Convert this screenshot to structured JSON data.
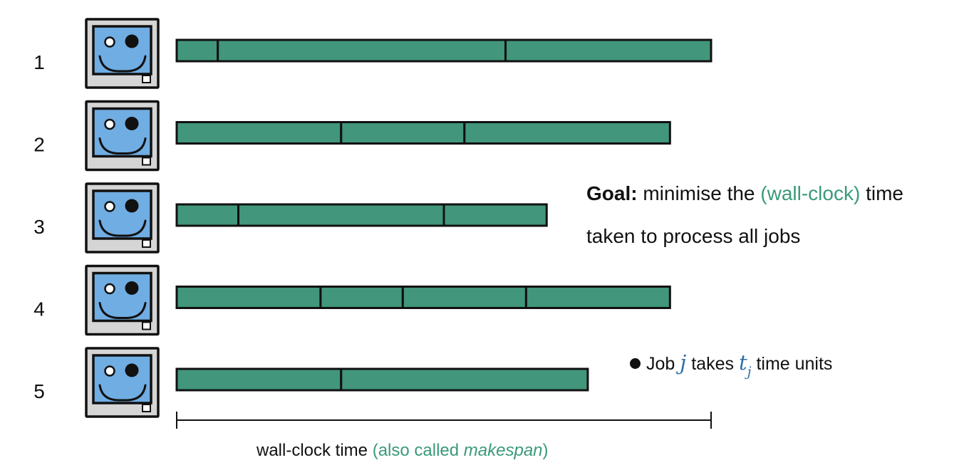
{
  "machines": [
    {
      "label": "1",
      "jobs": [
        4,
        28,
        20
      ]
    },
    {
      "label": "2",
      "jobs": [
        16,
        12,
        20
      ]
    },
    {
      "label": "3",
      "jobs": [
        6,
        20,
        10
      ]
    },
    {
      "label": "4",
      "jobs": [
        14,
        8,
        12,
        14
      ]
    },
    {
      "label": "5",
      "jobs": [
        16,
        24
      ]
    }
  ],
  "axis": {
    "max": 52
  },
  "colors": {
    "job": "#41967c",
    "screen": "#70ade3",
    "case": "#d5d5d5",
    "highlight": "#3a9a7a",
    "math": "#2f6fa8"
  },
  "icon": "computer-icon",
  "goal": {
    "bold": "Goal:",
    "text_before": "minimise the",
    "highlight": "(wall-clock)",
    "text_after": "time",
    "line2": "taken to process all jobs"
  },
  "note": {
    "pre": "Job",
    "var": "j",
    "mid": "takes",
    "var2": "t",
    "var2_sub": "j",
    "post": "time units"
  },
  "axis_label": {
    "main": "wall-clock time",
    "paren_open": "(also called",
    "italic": "makespan",
    "paren_close": ")"
  }
}
